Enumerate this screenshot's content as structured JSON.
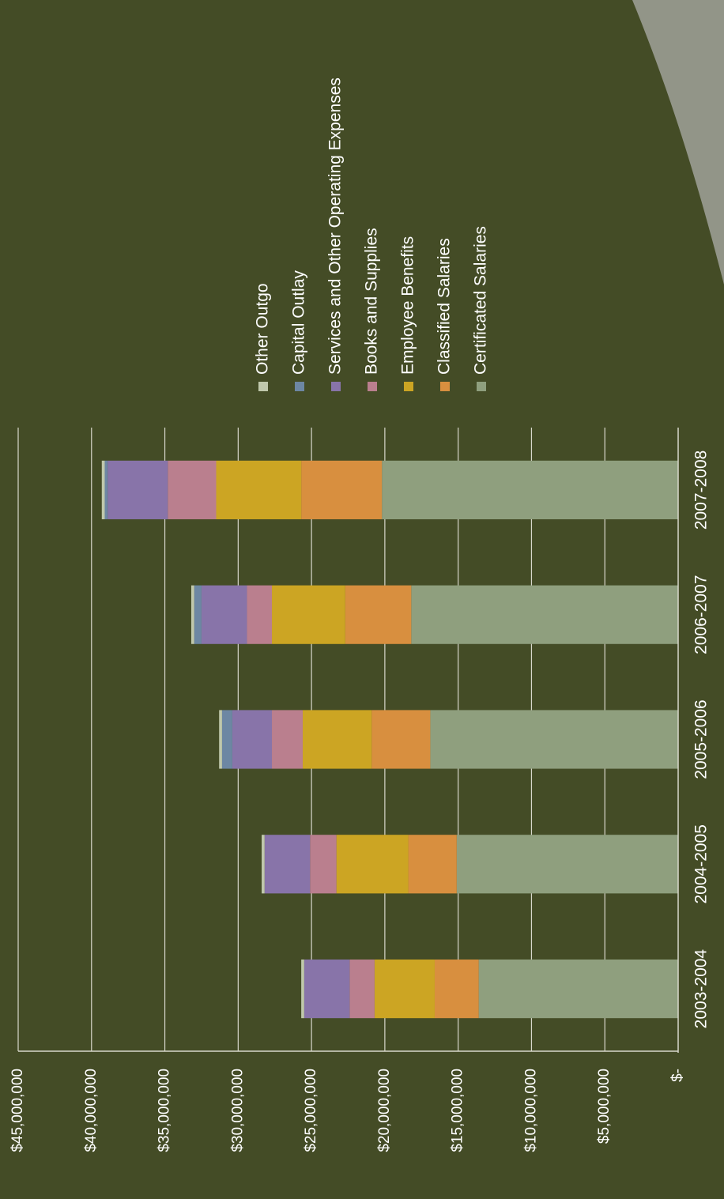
{
  "chart_data": {
    "type": "bar",
    "stacked": true,
    "orientation": "rotated",
    "title": "",
    "xlabel": "",
    "ylabel": "",
    "categories": [
      "2003-2004",
      "2004-2005",
      "2005-2006",
      "2006-2007",
      "2007-2008"
    ],
    "ylim": [
      0,
      45000000
    ],
    "yticks": [
      {
        "value": 0,
        "label": "$-"
      },
      {
        "value": 5000000,
        "label": "$5,000,000"
      },
      {
        "value": 10000000,
        "label": "$10,000,000"
      },
      {
        "value": 15000000,
        "label": "$15,000,000"
      },
      {
        "value": 20000000,
        "label": "$20,000,000"
      },
      {
        "value": 25000000,
        "label": "$25,000,000"
      },
      {
        "value": 30000000,
        "label": "$30,000,000"
      },
      {
        "value": 35000000,
        "label": "$35,000,000"
      },
      {
        "value": 40000000,
        "label": "$40,000,000"
      },
      {
        "value": 45000000,
        "label": "$45,000,000"
      }
    ],
    "grid": true,
    "legend_position": "right",
    "series": [
      {
        "name": "Certificated Salaries",
        "color": "#8f9f7e",
        "values": [
          13600000,
          15100000,
          16900000,
          18200000,
          20200000
        ]
      },
      {
        "name": "Classified Salaries",
        "color": "#d88f3f",
        "values": [
          3000000,
          3300000,
          4000000,
          4500000,
          5500000
        ]
      },
      {
        "name": "Employee Benefits",
        "color": "#cca523",
        "values": [
          4100000,
          4900000,
          4700000,
          5000000,
          5800000
        ]
      },
      {
        "name": "Books and Supplies",
        "color": "#ba7f8e",
        "values": [
          1700000,
          1800000,
          2100000,
          1700000,
          3300000
        ]
      },
      {
        "name": "Services and Other Operating Expenses",
        "color": "#8874a9",
        "values": [
          3100000,
          3100000,
          2700000,
          3100000,
          4100000
        ]
      },
      {
        "name": "Capital Outlay",
        "color": "#6d87a3",
        "values": [
          0,
          0,
          700000,
          500000,
          200000
        ]
      },
      {
        "name": "Other Outgo",
        "color": "#c0c8ac",
        "values": [
          200000,
          200000,
          200000,
          200000,
          200000
        ]
      }
    ]
  }
}
